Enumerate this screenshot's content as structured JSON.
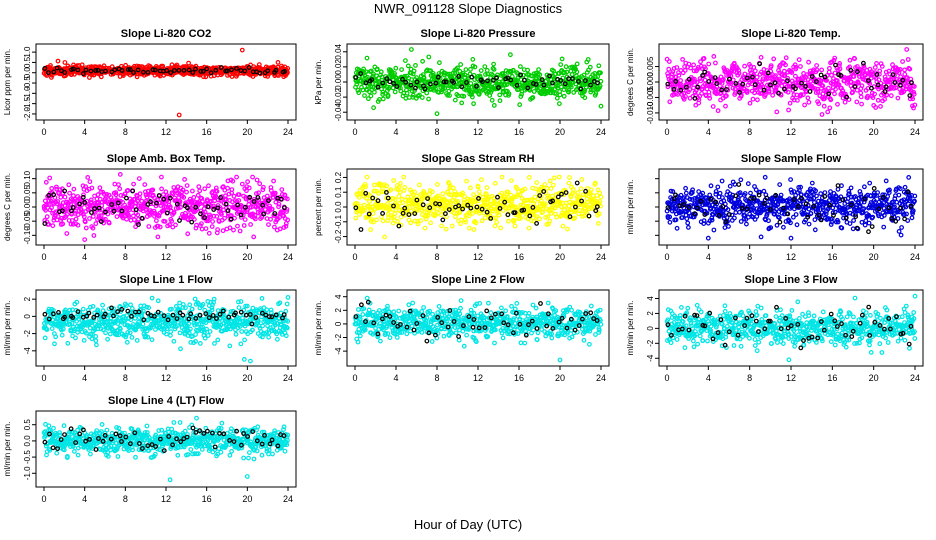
{
  "figure": {
    "title": "NWR_091128  Slope Diagnostics",
    "xlabel": "Hour of Day (UTC)"
  },
  "chart_data": [
    {
      "type": "scatter",
      "title": "Slope Li-820 CO2",
      "ylabel": "Licor ppm per min.",
      "xlim": [
        0,
        24
      ],
      "x_ticks": [
        "0",
        "4",
        "8",
        "12",
        "16",
        "20",
        "24"
      ],
      "ylim": [
        -2.1,
        1.2
      ],
      "y_ticks": [
        -2.0,
        -1.5,
        -1.0,
        -0.5,
        0.0,
        0.5,
        1.0
      ],
      "y_tick_labels": [
        "-2.0",
        "-1.5",
        "-1.0",
        "-0.5",
        "0.0",
        "0.5",
        "1.0"
      ],
      "series": [
        {
          "name": "all",
          "color": "#ff0000",
          "points": {
            "n": 700,
            "seed": 11,
            "mean": 0.1,
            "sd": 0.13,
            "trend": 0.0
          }
        },
        {
          "name": "reference",
          "color": "#000000",
          "points": {
            "n": 60,
            "seed": 12,
            "mean": 0.1,
            "sd": 0.08,
            "trend": 0.0
          }
        }
      ],
      "outliers": [
        {
          "x": 19.5,
          "y": 1.1,
          "color": "#ff0000"
        },
        {
          "x": 13.3,
          "y": -2.05,
          "color": "#ff0000"
        }
      ]
    },
    {
      "type": "scatter",
      "title": "Slope Li-820 Pressure",
      "ylabel": "kPa per min.",
      "xlim": [
        0,
        24
      ],
      "x_ticks": [
        "0",
        "4",
        "8",
        "12",
        "16",
        "20",
        "24"
      ],
      "ylim": [
        -0.045,
        0.045
      ],
      "y_ticks": [
        -0.04,
        -0.02,
        0.0,
        0.02,
        0.04
      ],
      "y_tick_labels": [
        "-0.04",
        "-0.02",
        "0.00",
        "0.02",
        "0.04"
      ],
      "series": [
        {
          "name": "all",
          "color": "#00cc00",
          "points": {
            "n": 700,
            "seed": 21,
            "mean": 0.0,
            "sd": 0.011,
            "trend": 0.0
          }
        },
        {
          "name": "reference",
          "color": "#000000",
          "points": {
            "n": 60,
            "seed": 22,
            "mean": 0.0,
            "sd": 0.005,
            "trend": 0.0
          }
        }
      ],
      "outliers": [
        {
          "x": 5.5,
          "y": 0.043,
          "color": "#00cc00"
        },
        {
          "x": 8.0,
          "y": -0.042,
          "color": "#00cc00"
        },
        {
          "x": 24.0,
          "y": -0.032,
          "color": "#00cc00"
        }
      ]
    },
    {
      "type": "scatter",
      "title": "Slope Li-820 Temp.",
      "ylabel": "degrees C per min.",
      "xlim": [
        0,
        24
      ],
      "x_ticks": [
        "0",
        "4",
        "8",
        "12",
        "16",
        "20",
        "24"
      ],
      "ylim": [
        -0.011,
        0.011
      ],
      "y_ticks": [
        -0.01,
        -0.005,
        0.0,
        0.005
      ],
      "y_tick_labels": [
        "-0.010",
        "-0.005",
        "0.000",
        "0.005"
      ],
      "series": [
        {
          "name": "all",
          "color": "#ff00ff",
          "points": {
            "n": 700,
            "seed": 31,
            "mean": 0.0,
            "sd": 0.0035,
            "trend": 0.0
          }
        },
        {
          "name": "reference",
          "color": "#000000",
          "points": {
            "n": 60,
            "seed": 32,
            "mean": 0.0,
            "sd": 0.003,
            "trend": 0.0
          }
        }
      ],
      "outliers": [
        {
          "x": 23.2,
          "y": 0.0105,
          "color": "#ff00ff"
        },
        {
          "x": 15.0,
          "y": -0.0105,
          "color": "#ff00ff"
        }
      ]
    },
    {
      "type": "scatter",
      "title": "Slope Amb. Box Temp.",
      "ylabel": "degrees C per min.",
      "xlim": [
        0,
        24
      ],
      "x_ticks": [
        "0",
        "4",
        "8",
        "12",
        "16",
        "20",
        "24"
      ],
      "ylim": [
        -0.12,
        0.12
      ],
      "y_ticks": [
        -0.1,
        -0.05,
        0.0,
        0.05,
        0.1
      ],
      "y_tick_labels": [
        "-0.10",
        "-0.05",
        "0.00",
        "0.05",
        "0.10"
      ],
      "series": [
        {
          "name": "all",
          "color": "#ff00ff",
          "points": {
            "n": 700,
            "seed": 41,
            "mean": 0.0,
            "sd": 0.04,
            "trend": 0.0
          }
        },
        {
          "name": "reference",
          "color": "#000000",
          "points": {
            "n": 60,
            "seed": 42,
            "mean": 0.0,
            "sd": 0.03,
            "trend": 0.0
          }
        }
      ],
      "outliers": [
        {
          "x": 7.5,
          "y": 0.115,
          "color": "#ff00ff"
        },
        {
          "x": 4.0,
          "y": -0.115,
          "color": "#ff00ff"
        }
      ]
    },
    {
      "type": "scatter",
      "title": "Slope Gas Stream RH",
      "ylabel": "percent per min.",
      "xlim": [
        0,
        24
      ],
      "x_ticks": [
        "0",
        "4",
        "8",
        "12",
        "16",
        "20",
        "24"
      ],
      "ylim": [
        -0.23,
        0.23
      ],
      "y_ticks": [
        -0.2,
        -0.1,
        0.0,
        0.1,
        0.2
      ],
      "y_tick_labels": [
        "-0.2",
        "-0.1",
        "0.0",
        "0.1",
        "0.2"
      ],
      "series": [
        {
          "name": "all",
          "color": "#ffff00",
          "points": {
            "n": 700,
            "seed": 51,
            "mean": 0.02,
            "sd": 0.07,
            "trend": 0.0
          }
        },
        {
          "name": "reference",
          "color": "#000000",
          "points": {
            "n": 60,
            "seed": 52,
            "mean": 0.0,
            "sd": 0.06,
            "trend": 0.0
          }
        }
      ],
      "outliers": [
        {
          "x": 17.0,
          "y": 0.2,
          "color": "#ffff00"
        }
      ]
    },
    {
      "type": "scatter",
      "title": "Slope Sample Flow",
      "ylabel": "ml/min per min.",
      "xlim": [
        0,
        24
      ],
      "x_ticks": [
        "0",
        "4",
        "8",
        "12",
        "16",
        "20",
        "24"
      ],
      "ylim": [
        -12,
        12
      ],
      "y_ticks": [
        -10,
        -5,
        0,
        5,
        10
      ],
      "y_tick_labels": [
        "",
        "",
        "",
        "",
        ""
      ],
      "series": [
        {
          "name": "all",
          "color": "#0000dd",
          "points": {
            "n": 700,
            "seed": 61,
            "mean": 0.5,
            "sd": 3.5,
            "trend": 0.0
          }
        },
        {
          "name": "reference",
          "color": "#000000",
          "points": {
            "n": 60,
            "seed": 62,
            "mean": 0.0,
            "sd": 3.5,
            "trend": 0.0
          }
        }
      ],
      "outliers": [
        {
          "x": 4.0,
          "y": -11,
          "color": "#0000dd"
        },
        {
          "x": 12.0,
          "y": -11,
          "color": "#0000dd"
        },
        {
          "x": 9.5,
          "y": 10.5,
          "color": "#0000dd"
        }
      ]
    },
    {
      "type": "scatter",
      "title": "Slope Line 1 Flow",
      "ylabel": "ml/min per min.",
      "xlim": [
        0,
        24
      ],
      "x_ticks": [
        "0",
        "4",
        "8",
        "12",
        "16",
        "20",
        "24"
      ],
      "ylim": [
        -5.3,
        2.6
      ],
      "y_ticks": [
        -4,
        -2,
        0,
        2
      ],
      "y_tick_labels": [
        "-4",
        "-2",
        "0",
        "2"
      ],
      "series": [
        {
          "name": "all",
          "color": "#00e5e5",
          "points": {
            "n": 700,
            "seed": 71,
            "mean": -0.6,
            "sd": 1.0,
            "trend": 0.0
          }
        },
        {
          "name": "reference",
          "color": "#000000",
          "points": {
            "n": 60,
            "seed": 72,
            "mean": 0.1,
            "sd": 0.3,
            "trend": 0.0
          }
        }
      ],
      "outliers": [
        {
          "x": 19.7,
          "y": -5.0,
          "color": "#00e5e5"
        },
        {
          "x": 20.3,
          "y": -5.2,
          "color": "#00e5e5"
        },
        {
          "x": 24.0,
          "y": 2.2,
          "color": "#00e5e5"
        }
      ]
    },
    {
      "type": "scatter",
      "title": "Slope Line 2 Flow",
      "ylabel": "ml/min per min.",
      "xlim": [
        0,
        24
      ],
      "x_ticks": [
        "0",
        "4",
        "8",
        "12",
        "16",
        "20",
        "24"
      ],
      "ylim": [
        -5.6,
        4.4
      ],
      "y_ticks": [
        -4,
        -2,
        0,
        2,
        4
      ],
      "y_tick_labels": [
        "-4",
        "-2",
        "0",
        "2",
        "4"
      ],
      "series": [
        {
          "name": "all",
          "color": "#00e5e5",
          "points": {
            "n": 700,
            "seed": 81,
            "mean": 0.2,
            "sd": 1.2,
            "trend": 0.0
          }
        },
        {
          "name": "reference",
          "color": "#000000",
          "points": {
            "n": 60,
            "seed": 82,
            "mean": 0.2,
            "sd": 1.1,
            "trend": 0.0
          }
        }
      ],
      "outliers": [
        {
          "x": 20.0,
          "y": -5.3,
          "color": "#00e5e5"
        }
      ]
    },
    {
      "type": "scatter",
      "title": "Slope Line 3 Flow",
      "ylabel": "ml/min per min.",
      "xlim": [
        0,
        24
      ],
      "x_ticks": [
        "0",
        "4",
        "8",
        "12",
        "16",
        "20",
        "24"
      ],
      "ylim": [
        -4.5,
        4.6
      ],
      "y_ticks": [
        -4,
        -2,
        0,
        2,
        4
      ],
      "y_tick_labels": [
        "-4",
        "-2",
        "0",
        "2",
        "4"
      ],
      "series": [
        {
          "name": "all",
          "color": "#00e5e5",
          "points": {
            "n": 700,
            "seed": 91,
            "mean": 0.0,
            "sd": 1.2,
            "trend": 0.0
          }
        },
        {
          "name": "reference",
          "color": "#000000",
          "points": {
            "n": 60,
            "seed": 92,
            "mean": 0.0,
            "sd": 1.3,
            "trend": 0.0
          }
        }
      ],
      "outliers": [
        {
          "x": 11.8,
          "y": -4.2,
          "color": "#00e5e5"
        },
        {
          "x": 24.0,
          "y": 4.3,
          "color": "#00e5e5"
        }
      ]
    },
    {
      "type": "scatter",
      "title": "Slope Line 4 (LT) Flow",
      "ylabel": "ml/min per min.",
      "xlim": [
        0,
        24
      ],
      "x_ticks": [
        "0",
        "4",
        "8",
        "12",
        "16",
        "20",
        "24"
      ],
      "ylim": [
        -1.3,
        0.8
      ],
      "y_ticks": [
        -1.0,
        -0.5,
        0.0,
        0.5
      ],
      "y_tick_labels": [
        "-1.0",
        "-0.5",
        "0.0",
        "0.5"
      ],
      "series": [
        {
          "name": "all",
          "color": "#00e5e5",
          "points": {
            "n": 700,
            "seed": 101,
            "mean": 0.0,
            "sd": 0.2,
            "trend": 0.0
          }
        },
        {
          "name": "reference",
          "color": "#000000",
          "points": {
            "n": 60,
            "seed": 102,
            "mean": 0.05,
            "sd": 0.15,
            "trend": 0.0
          }
        }
      ],
      "outliers": [
        {
          "x": 12.4,
          "y": -1.2,
          "color": "#00e5e5"
        },
        {
          "x": 20.0,
          "y": -1.1,
          "color": "#00e5e5"
        },
        {
          "x": 15.0,
          "y": 0.7,
          "color": "#00e5e5"
        }
      ]
    }
  ]
}
